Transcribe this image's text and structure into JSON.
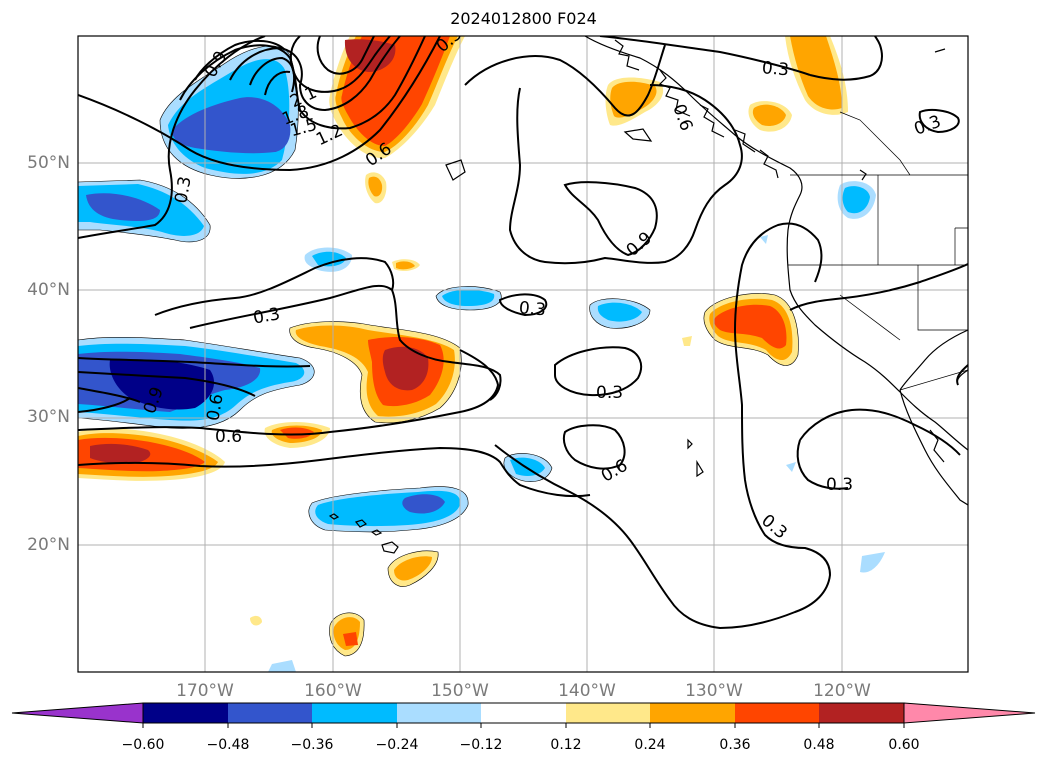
{
  "title": "2024012800 F024",
  "latitude_labels": [
    "50°N",
    "40°N",
    "30°N",
    "20°N"
  ],
  "longitude_labels": [
    "170°W",
    "160°W",
    "150°W",
    "140°W",
    "130°W",
    "120°W"
  ],
  "contour_labels": [
    "0.9",
    "0.3",
    "2.1",
    "1.8",
    "1.5",
    "1.2",
    "0.6",
    "0.3",
    "0.3",
    "0.9",
    "0.6",
    "0.3",
    "0.3",
    "0.6",
    "0.6",
    "0.3",
    "0.3",
    "0.3",
    "0.9",
    "0.6",
    "0.3"
  ],
  "colorbar": {
    "ticks": [
      "−0.60",
      "−0.48",
      "−0.36",
      "−0.24",
      "−0.12",
      "0.12",
      "0.24",
      "0.36",
      "0.48",
      "0.60"
    ],
    "colors": [
      "#9933cc",
      "#000088",
      "#3355cc",
      "#00bbff",
      "#aaddff",
      "#ffffff",
      "#ffe88a",
      "#ffa500",
      "#ff4500",
      "#b22222",
      "#ff88aa"
    ]
  },
  "colors": {
    "neg_weak": "#aaddff",
    "neg_mid": "#00bbff",
    "neg_strong": "#3355cc",
    "neg_max": "#000088",
    "pos_weak": "#ffe88a",
    "pos_mid": "#ffa500",
    "pos_strong": "#ff4500",
    "pos_max": "#b22222"
  }
}
